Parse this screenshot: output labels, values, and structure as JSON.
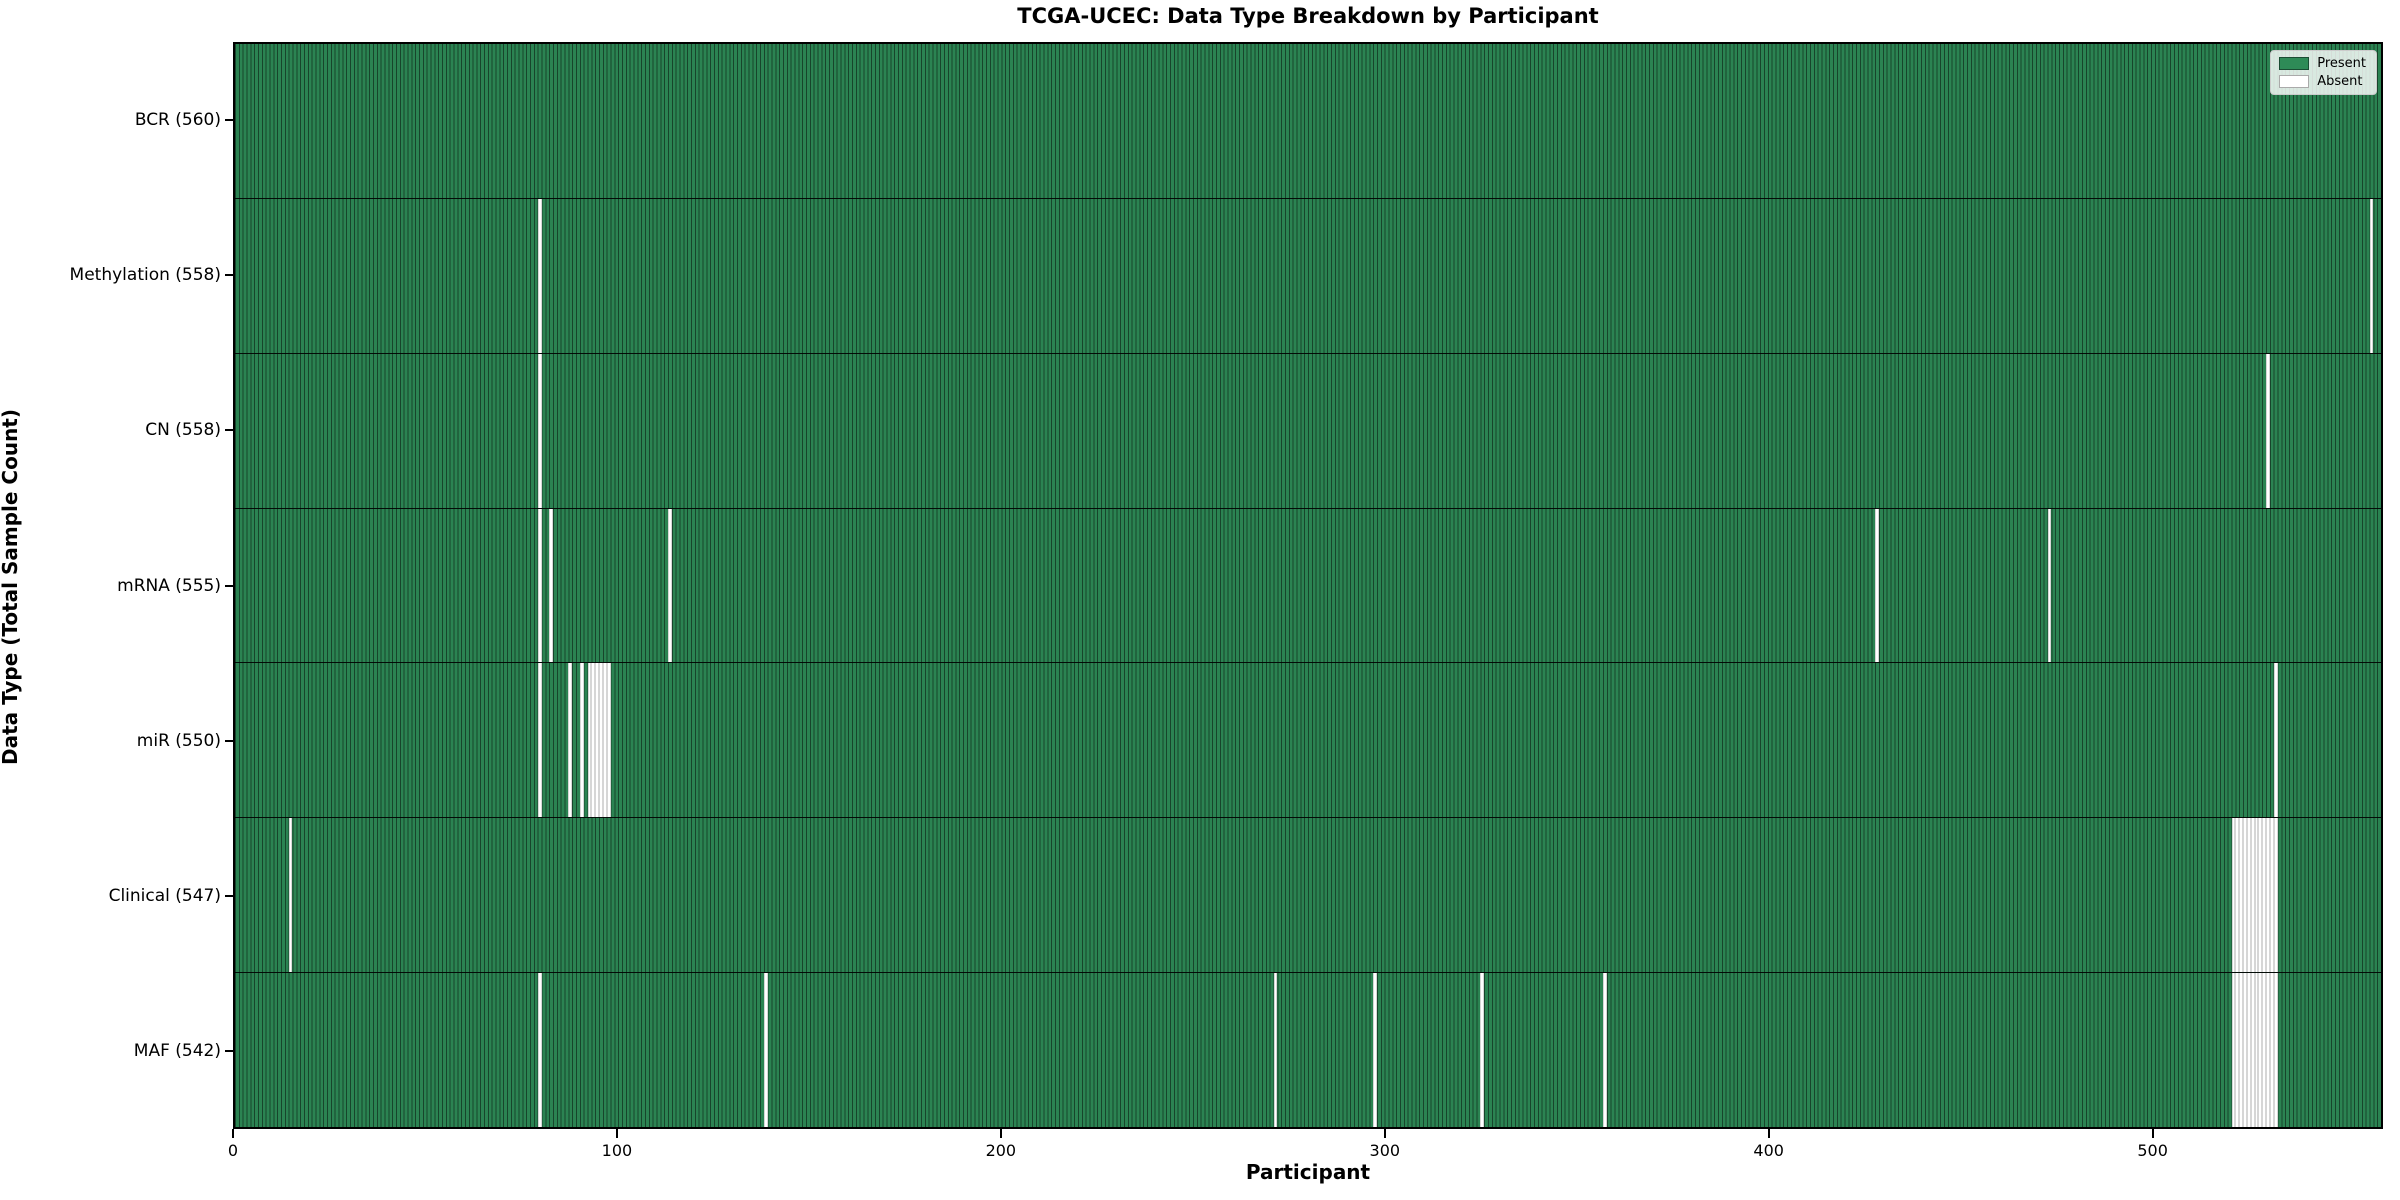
{
  "title": "TCGA-UCEC: Data Type Breakdown by Participant",
  "legend": {
    "present_label": "Present",
    "absent_label": "Absent"
  },
  "chart_data": {
    "type": "heatmap",
    "title": "TCGA-UCEC: Data Type Breakdown by Participant",
    "xlabel": "Participant",
    "ylabel": "Data Type (Total Sample Count)",
    "x_ticks": [
      0,
      100,
      200,
      300,
      400,
      500
    ],
    "xlim": [
      0,
      560
    ],
    "n_participants": 560,
    "grid": false,
    "legend_position": "upper right",
    "legend_entries": [
      {
        "label": "Present",
        "color": "#2e8b57"
      },
      {
        "label": "Absent",
        "color": "#ffffff"
      }
    ],
    "colors": {
      "present": "#2e8b57",
      "absent": "#ffffff",
      "bar_edge": "#1a4d33"
    },
    "rows": [
      {
        "key": "bcr",
        "label": "BCR (560)",
        "data_type": "BCR",
        "count": 560,
        "absent_participants": []
      },
      {
        "key": "methylation",
        "label": "Methylation (558)",
        "data_type": "Methylation",
        "count": 558,
        "absent_participants": [
          79,
          557
        ]
      },
      {
        "key": "cn",
        "label": "CN (558)",
        "data_type": "CN",
        "count": 558,
        "absent_participants": [
          79,
          530
        ]
      },
      {
        "key": "mrna",
        "label": "mRNA (555)",
        "data_type": "mRNA",
        "count": 555,
        "absent_participants": [
          79,
          82,
          113,
          428,
          473
        ]
      },
      {
        "key": "mir",
        "label": "miR (550)",
        "data_type": "miR",
        "count": 550,
        "absent_participants": [
          79,
          87,
          90,
          92,
          93,
          94,
          95,
          96,
          97,
          532
        ]
      },
      {
        "key": "clinical",
        "label": "Clinical (547)",
        "data_type": "Clinical",
        "count": 547,
        "absent_participants": [
          14,
          521,
          522,
          523,
          524,
          525,
          526,
          527,
          528,
          529,
          530,
          531,
          532
        ]
      },
      {
        "key": "maf",
        "label": "MAF (542)",
        "data_type": "MAF",
        "count": 542,
        "absent_participants": [
          79,
          138,
          271,
          297,
          325,
          357,
          521,
          522,
          523,
          524,
          525,
          526,
          527,
          528,
          529,
          530,
          531,
          532
        ]
      }
    ]
  }
}
